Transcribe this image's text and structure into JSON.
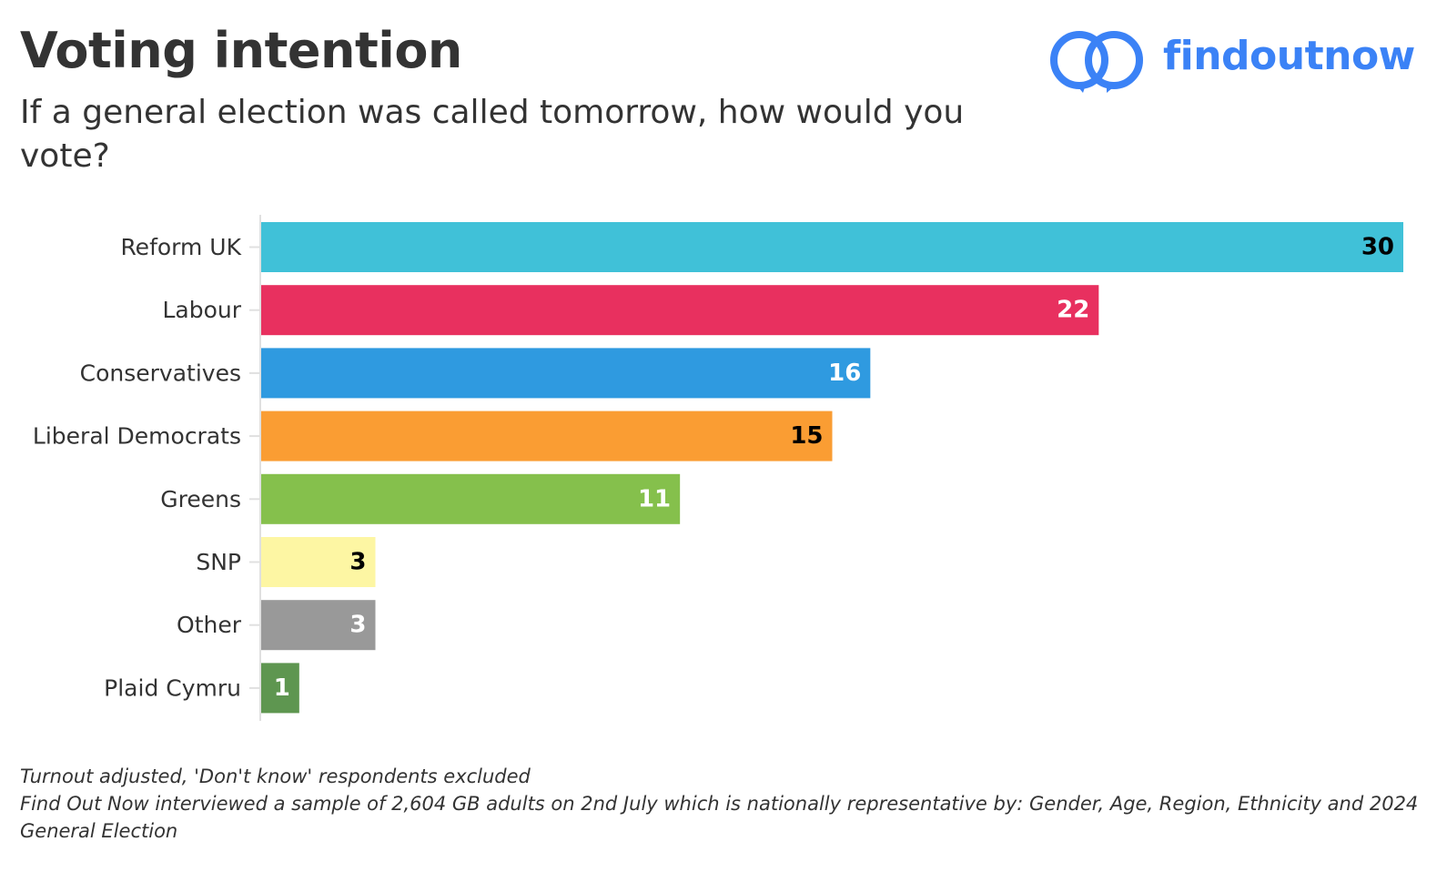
{
  "header": {
    "title": "Voting intention",
    "subtitle": "If a general election was called tomorrow, how would you vote?"
  },
  "brand": {
    "name": "findoutnow",
    "logo_icon": "two-interlocking-rings-icon",
    "color": "#3b82f6"
  },
  "chart_data": {
    "type": "bar",
    "orientation": "horizontal",
    "categories": [
      "Reform UK",
      "Labour",
      "Conservatives",
      "Liberal Democrats",
      "Greens",
      "SNP",
      "Other",
      "Plaid Cymru"
    ],
    "values": [
      30,
      22,
      16,
      15,
      11,
      3,
      3,
      1
    ],
    "colors": [
      "#40c1d8",
      "#e8305f",
      "#2f9ae0",
      "#fa9d33",
      "#85c04c",
      "#fdf6a3",
      "#999999",
      "#5e9650"
    ],
    "label_colors": [
      "#000000",
      "#ffffff",
      "#ffffff",
      "#000000",
      "#ffffff",
      "#000000",
      "#ffffff",
      "#ffffff"
    ],
    "xlim": [
      0,
      30
    ],
    "grid": false,
    "legend": "none"
  },
  "footnote": {
    "line1": "Turnout adjusted, 'Don't know' respondents excluded",
    "line2": "Find Out Now interviewed a sample of 2,604 GB adults on 2nd July which is nationally representative by: Gender, Age, Region, Ethnicity and 2024 General Election"
  }
}
